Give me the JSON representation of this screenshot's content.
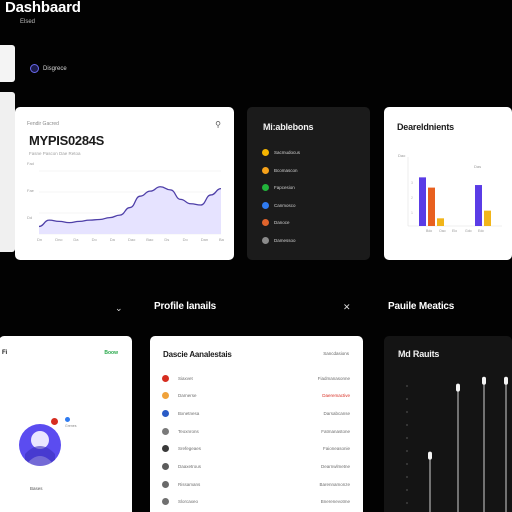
{
  "header": {
    "title": "Dashbaard",
    "subtitle": "Elsed",
    "nav_label": "Disgrece"
  },
  "main_card": {
    "label": "Fendir Gacred",
    "value": "MYPIS0284S",
    "meta": "Fasne Pascon Dae Retoa",
    "search_icon": "search-icon",
    "y_ticks": [
      "Fad",
      "Fae",
      "Dd"
    ],
    "x_ticks": [
      "Dn",
      "Dno",
      "Da",
      "Do",
      "Da",
      "Dao",
      "Bao",
      "Ds",
      "Do",
      "Dan",
      "Ba"
    ],
    "chart_data": {
      "type": "area",
      "x": [
        0,
        1,
        2,
        3,
        4,
        5,
        6,
        7,
        8,
        9,
        10,
        11,
        12,
        13,
        14,
        15,
        16,
        17,
        18
      ],
      "values": [
        12,
        22,
        20,
        18,
        20,
        22,
        23,
        26,
        30,
        42,
        60,
        68,
        75,
        70,
        55,
        48,
        46,
        62,
        72
      ],
      "ylim": [
        0,
        100
      ],
      "color": "#4e3fa8",
      "fill": "#e6e3ff"
    }
  },
  "milestones": {
    "title": "Mi:ablebons",
    "items": [
      {
        "label": "Sacmudocus",
        "color": "#f4b400"
      },
      {
        "label": "Bcomascon",
        "color": "#f6a21a"
      },
      {
        "label": "Fapcesion",
        "color": "#22b33b"
      },
      {
        "label": "Canmosco",
        "color": "#2f7bf0"
      },
      {
        "label": "Danoce",
        "color": "#e0642c"
      },
      {
        "label": "Damessoo",
        "color": "#8b8b8b"
      }
    ]
  },
  "departments": {
    "title": "Deareldnients",
    "chart_data": {
      "type": "bar",
      "groups": [
        {
          "label": "Dao",
          "bars": [
            {
              "value": 38,
              "color": "#5a3ce6"
            },
            {
              "value": 30,
              "color": "#e8601f"
            },
            {
              "value": 6,
              "color": "#f1b51a"
            }
          ]
        },
        {
          "label": "Das",
          "bars": [
            {
              "value": 32,
              "color": "#5a3ce6"
            },
            {
              "value": 12,
              "color": "#f1b51a"
            }
          ]
        }
      ],
      "x_ticks": [
        "Bdo",
        "Oao",
        "Elo",
        "Gdo",
        "Edc"
      ],
      "y_ticks": [
        "1",
        "2",
        "3"
      ],
      "ylim": [
        0,
        50
      ]
    }
  },
  "sections": {
    "left_header": "Profile lanails",
    "right_header": "Pauile Meatics"
  },
  "profile": {
    "title": "Fi",
    "tag": "Boow",
    "mini_text": "Grenes",
    "name": "Bases",
    "avatar_color": "#5b4cf0"
  },
  "accounts": {
    "title": "Dascie Aanalestais",
    "header_right": "Sancdasions",
    "rows": [
      {
        "name": "Siaxvet",
        "amount": "Fiadmanasonne",
        "icon_color": "#d62d20",
        "highlight": false
      },
      {
        "name": "Darnerse",
        "amount": "Daeremactive",
        "icon_color": "#f0a23a",
        "highlight": true
      },
      {
        "name": "Bxnetnesa",
        "amount": "Darsabcanse",
        "icon_color": "#2a5bc6",
        "highlight": false
      },
      {
        "name": "Teoxnrons",
        "amount": "Fatmanastone",
        "icon_color": "#7a7a7a",
        "highlight": false
      },
      {
        "name": "Srefegeaes",
        "amount": "Faioneasonie",
        "icon_color": "#3a3a3a",
        "highlight": false
      },
      {
        "name": "Daaxetrous",
        "amount": "Dearnwlmetne",
        "icon_color": "#5c5c5c",
        "highlight": false
      },
      {
        "name": "Rissamans",
        "amount": "Barennamonze",
        "icon_color": "#6a6a6a",
        "highlight": false
      },
      {
        "name": "Slorcaxeo",
        "amount": "Bnerenevotme",
        "icon_color": "#707070",
        "highlight": false
      }
    ]
  },
  "dark_metrics": {
    "title": "Md Rauits",
    "chart_data": {
      "type": "line",
      "spikes": [
        {
          "height": 0.4
        },
        {
          "height": 0.9
        },
        {
          "height": 0.95
        },
        {
          "height": 0.95
        }
      ]
    }
  }
}
